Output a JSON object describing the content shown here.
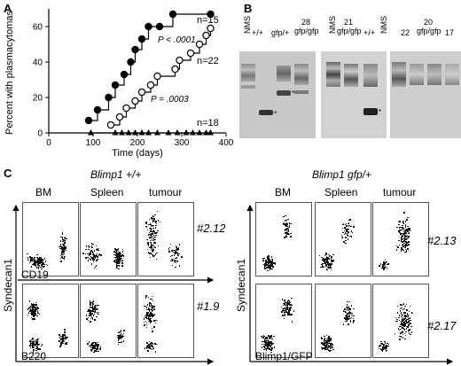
{
  "panel_a": {
    "label": "A",
    "chart_data": {
      "type": "line",
      "ylabel": "Percent with plasmacytomas",
      "xlabel": "Time (days)",
      "xlim": [
        0,
        400
      ],
      "ylim": [
        0,
        70
      ],
      "xticks": [
        "0",
        "100",
        "200",
        "300",
        "400"
      ],
      "yticks": [
        "0",
        "20",
        "40",
        "60"
      ],
      "series": [
        {
          "name": "n=15",
          "marker": "filled-circle",
          "x": [
            90,
            110,
            135,
            150,
            170,
            185,
            195,
            210,
            225,
            250,
            280,
            365
          ],
          "y": [
            7,
            13,
            20,
            27,
            33,
            40,
            47,
            53,
            60,
            60,
            67,
            67
          ]
        },
        {
          "name": "n=22",
          "marker": "open-circle",
          "x": [
            140,
            160,
            175,
            195,
            210,
            230,
            245,
            285,
            295,
            320,
            340,
            355,
            365
          ],
          "y": [
            4.5,
            9,
            14,
            18,
            23,
            27,
            32,
            36,
            41,
            45,
            50,
            55,
            59
          ]
        },
        {
          "name": "n=18",
          "marker": "filled-triangle",
          "x": [
            95,
            150,
            165,
            180,
            195,
            210,
            225,
            245,
            270,
            290,
            310,
            325,
            340,
            355,
            365
          ],
          "y": [
            0,
            0,
            0,
            0,
            0,
            0,
            0,
            0,
            0,
            0,
            0,
            0,
            0,
            0,
            0
          ]
        }
      ],
      "annotations": [
        "P < .0001",
        "P = .0003"
      ]
    }
  },
  "panel_b": {
    "label": "B",
    "lanes": [
      "NMS",
      "+/+",
      "gfp/+",
      "28 gfp/gfp",
      "NMS",
      "21 gfp/gfp",
      "+/+",
      "NMS",
      "22",
      "20 gfp/gfp",
      "17"
    ]
  },
  "panel_c": {
    "label": "C",
    "groups": [
      {
        "genotype_name": "Blimp1",
        "genotype_suffix": "+/+"
      },
      {
        "genotype_name": "Blimp1",
        "genotype_suffix": "gfp/+"
      }
    ],
    "columns": [
      "BM",
      "Spleen",
      "tumour"
    ],
    "ylabel": "Syndecan1",
    "left_x_labels": [
      "CD19",
      "B220"
    ],
    "right_x_label": "Blimp1/GFP",
    "tumour_ids": [
      "#2.12",
      "#1.9",
      "#2.13",
      "#2.17"
    ]
  }
}
